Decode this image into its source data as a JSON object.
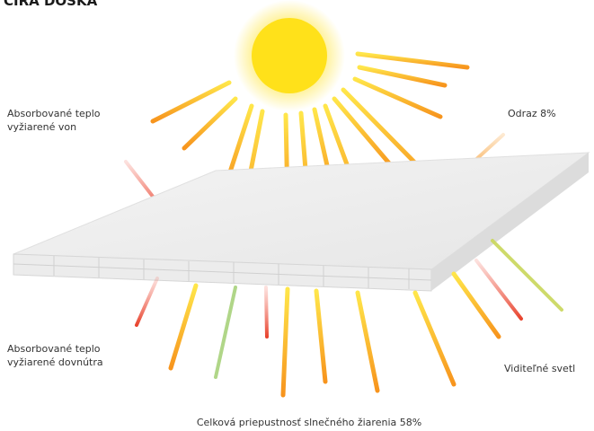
{
  "header": {
    "title": "ČÍRA DOSKA"
  },
  "labels": {
    "absorbed_out": [
      "Absorbované teplo",
      "vyžiarené von"
    ],
    "reflection": "Odraz 8%",
    "absorbed_in": [
      "Absorbované teplo",
      "vyžiarené dovnútra"
    ],
    "visible_light": "Viditeľné svetl",
    "total": "Celková priepustnosť slnečného žiarenia 58%"
  }
}
